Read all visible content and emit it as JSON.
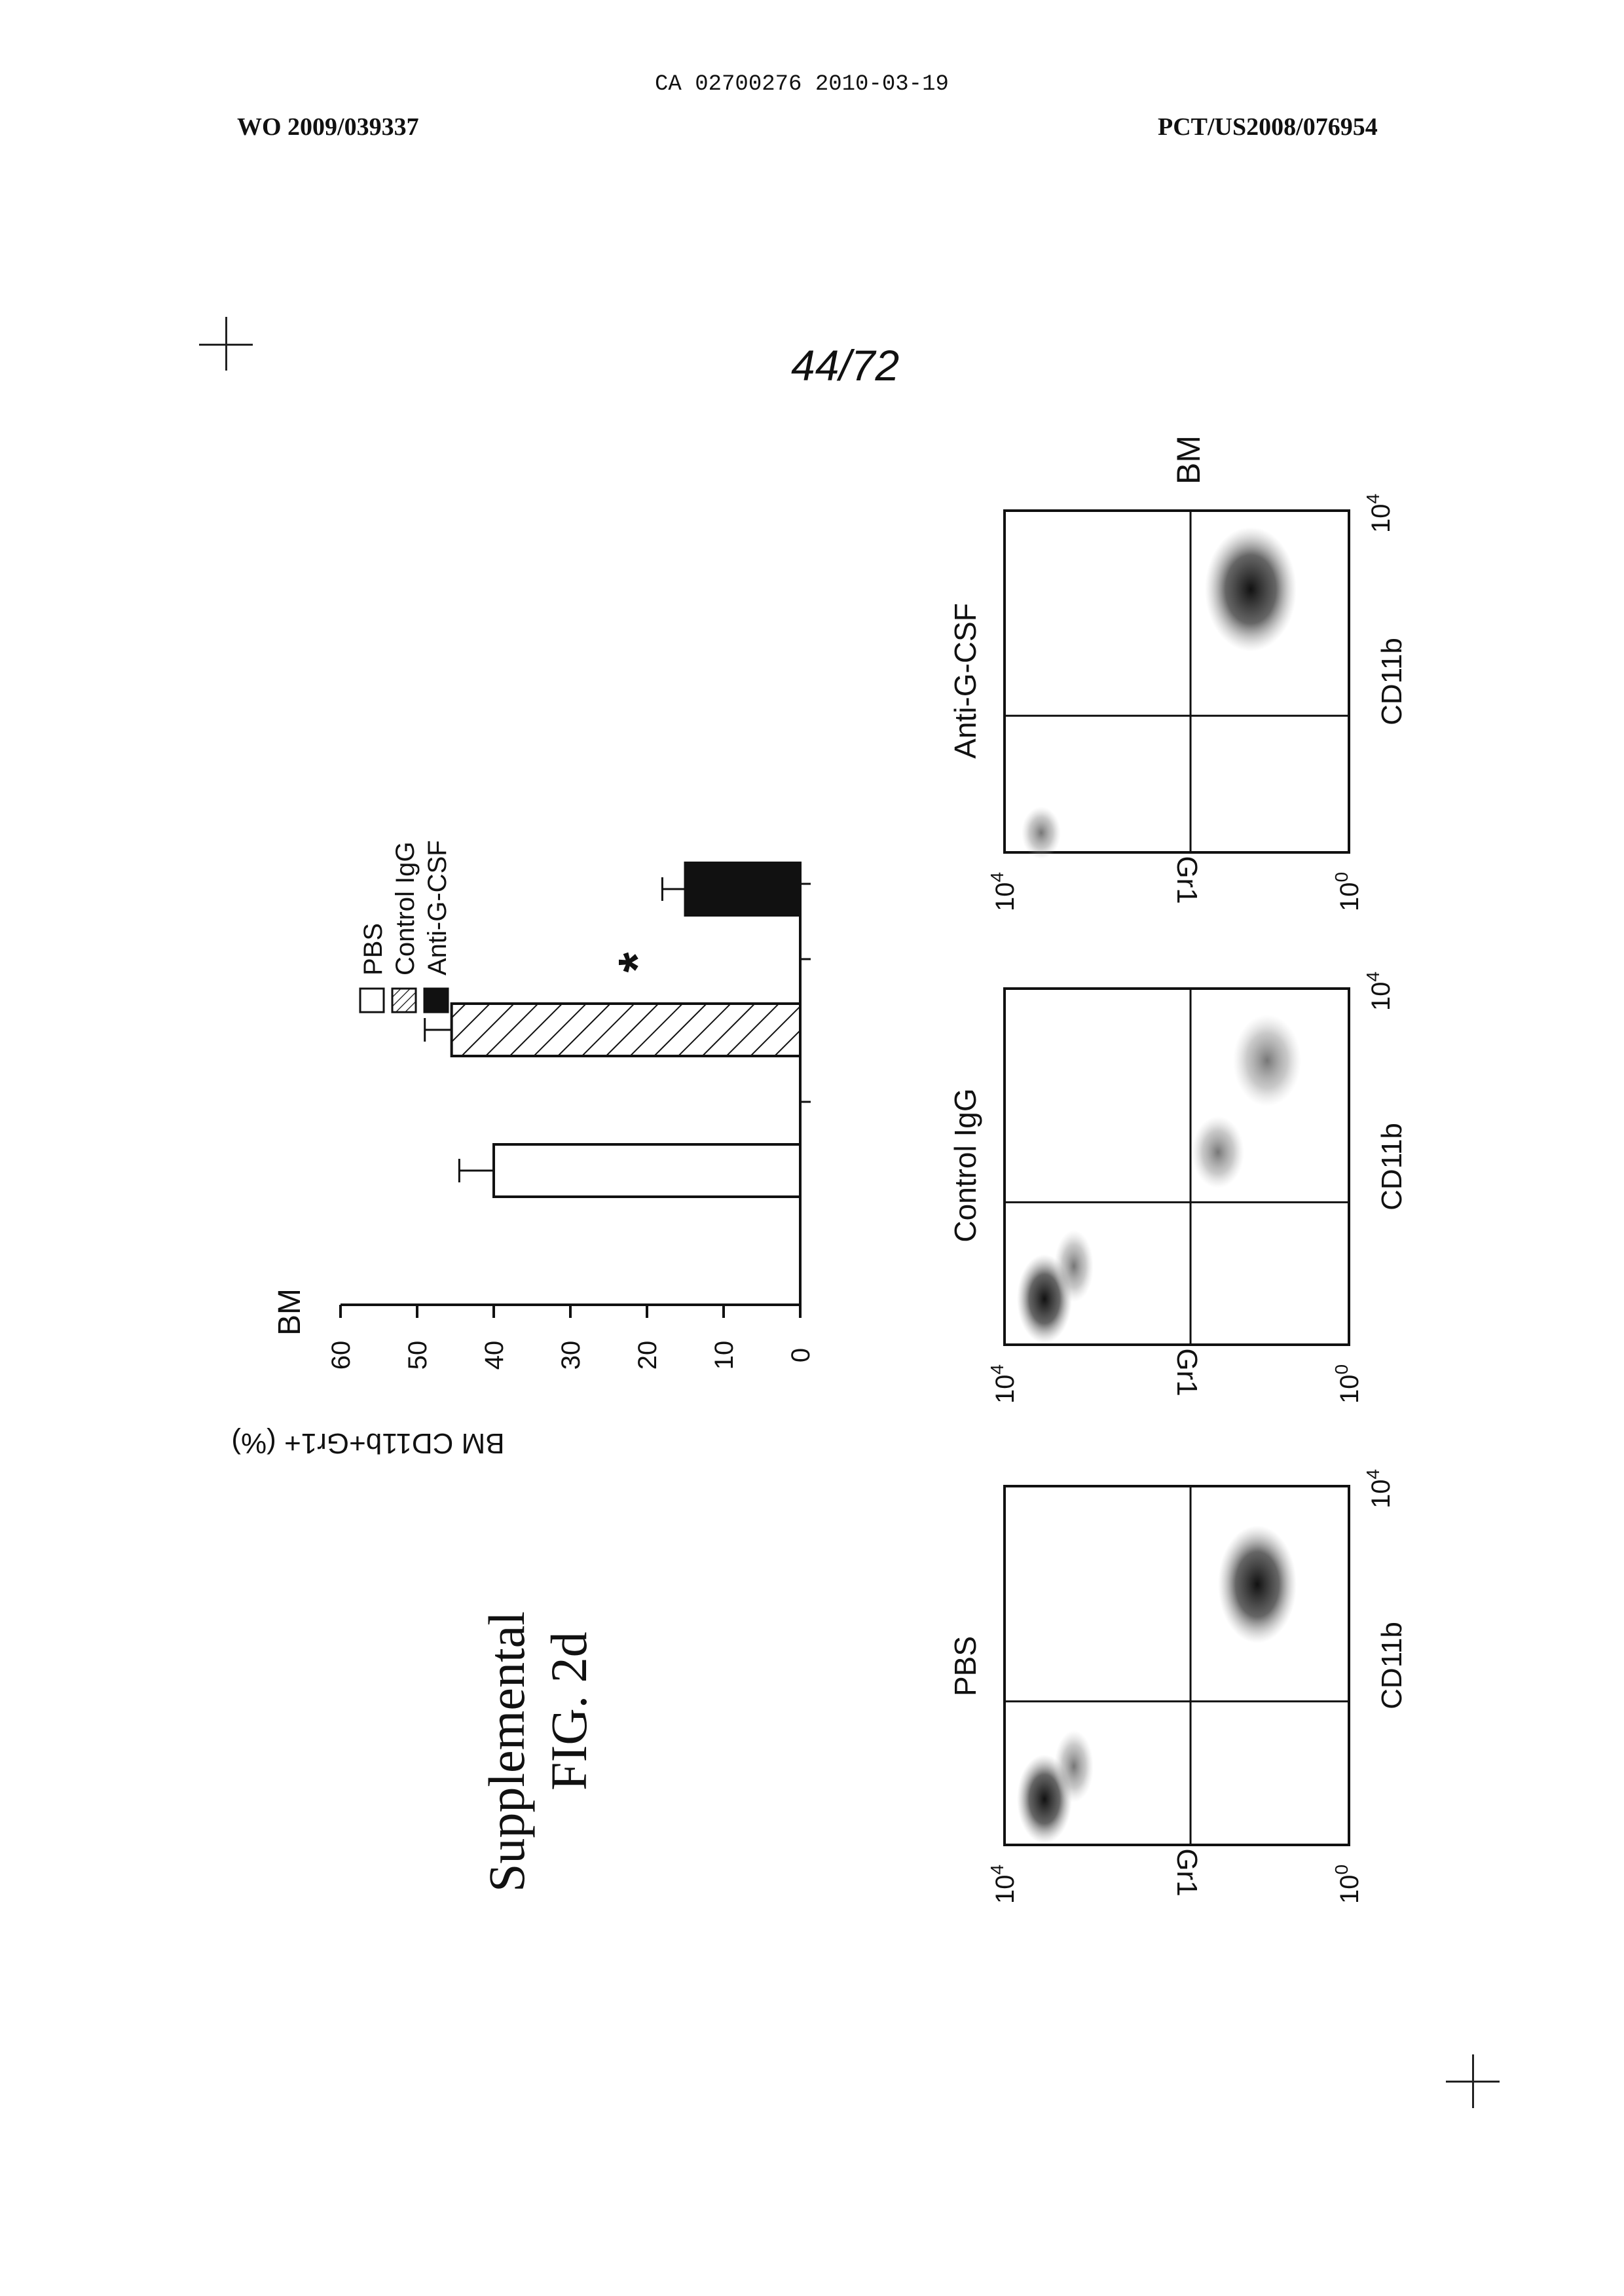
{
  "header": {
    "application_number": "CA 02700276 2010-03-19",
    "publication_number": "WO 2009/039337",
    "pct_number": "PCT/US2008/076954"
  },
  "page_number": "44/72",
  "figure": {
    "title_line1": "Supplemental",
    "title_line2": "FIG. 2d"
  },
  "chart_data": [
    {
      "type": "bar",
      "title": "BM",
      "xlabel": "",
      "ylabel": "BM CD11b+Gr1+ (%)",
      "ylim": [
        0,
        60
      ],
      "yticks": [
        "0",
        "10",
        "20",
        "30",
        "40",
        "50",
        "60"
      ],
      "categories": [
        "PBS",
        "Control IgG",
        "Anti-G-CSF"
      ],
      "values": [
        40,
        45.5,
        15
      ],
      "errors": [
        4.5,
        3.5,
        3
      ],
      "fills": [
        "open",
        "hatched",
        "solid"
      ],
      "legend": [
        "PBS",
        "Control IgG",
        "Anti-G-CSF"
      ],
      "legend_placement": "top-right",
      "annotation": "*",
      "grid": false
    },
    {
      "type": "scatter",
      "title": "BM",
      "panels": [
        {
          "label": "PBS"
        },
        {
          "label": "Control IgG"
        },
        {
          "label": "Anti-G-CSF"
        }
      ],
      "xlabel": "CD11b",
      "ylabel": "Gr1",
      "tick_base": "10",
      "tick_low_exp": "0",
      "tick_high_exp": "4",
      "scale": "log",
      "grid": false
    }
  ]
}
